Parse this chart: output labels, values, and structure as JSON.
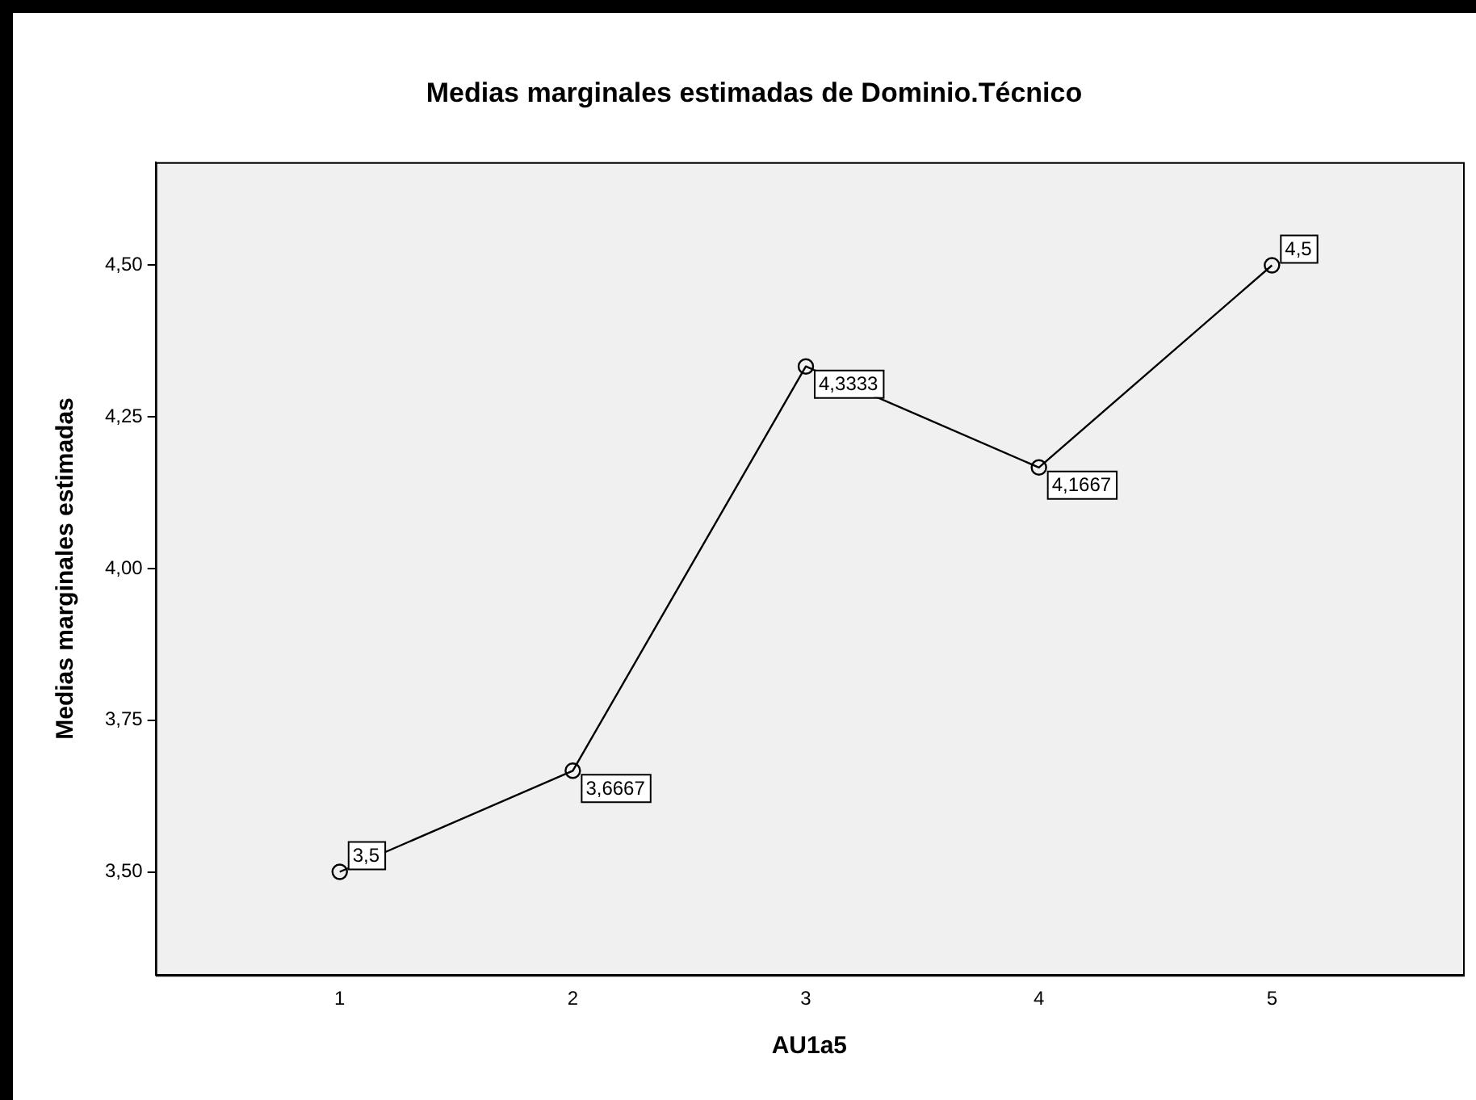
{
  "chart_data": {
    "type": "line",
    "title": "Medias marginales estimadas de Dominio.Técnico",
    "xlabel": "AU1a5",
    "ylabel": "Medias marginales estimadas",
    "x": [
      1,
      2,
      3,
      4,
      5
    ],
    "xlim": [
      0.21,
      5.82
    ],
    "xticks": [
      1,
      2,
      3,
      4,
      5
    ],
    "ylim": [
      3.33,
      4.67
    ],
    "yticks": [
      {
        "value": 3.5,
        "label": "3,50"
      },
      {
        "value": 3.75,
        "label": "3,75"
      },
      {
        "value": 4,
        "label": "4,00"
      },
      {
        "value": 4.25,
        "label": "4,25"
      },
      {
        "value": 4.5,
        "label": "4,50"
      }
    ],
    "series": [
      {
        "color": "#000000",
        "values": [
          3.5,
          3.6667,
          4.3333,
          4.1667,
          4.5
        ],
        "value_labels": [
          "3,5",
          "3,6667",
          "4,3333",
          "4,1667",
          "4,5"
        ]
      }
    ],
    "marker": "circle",
    "line_style": "solid",
    "grid": false,
    "legend": false
  }
}
